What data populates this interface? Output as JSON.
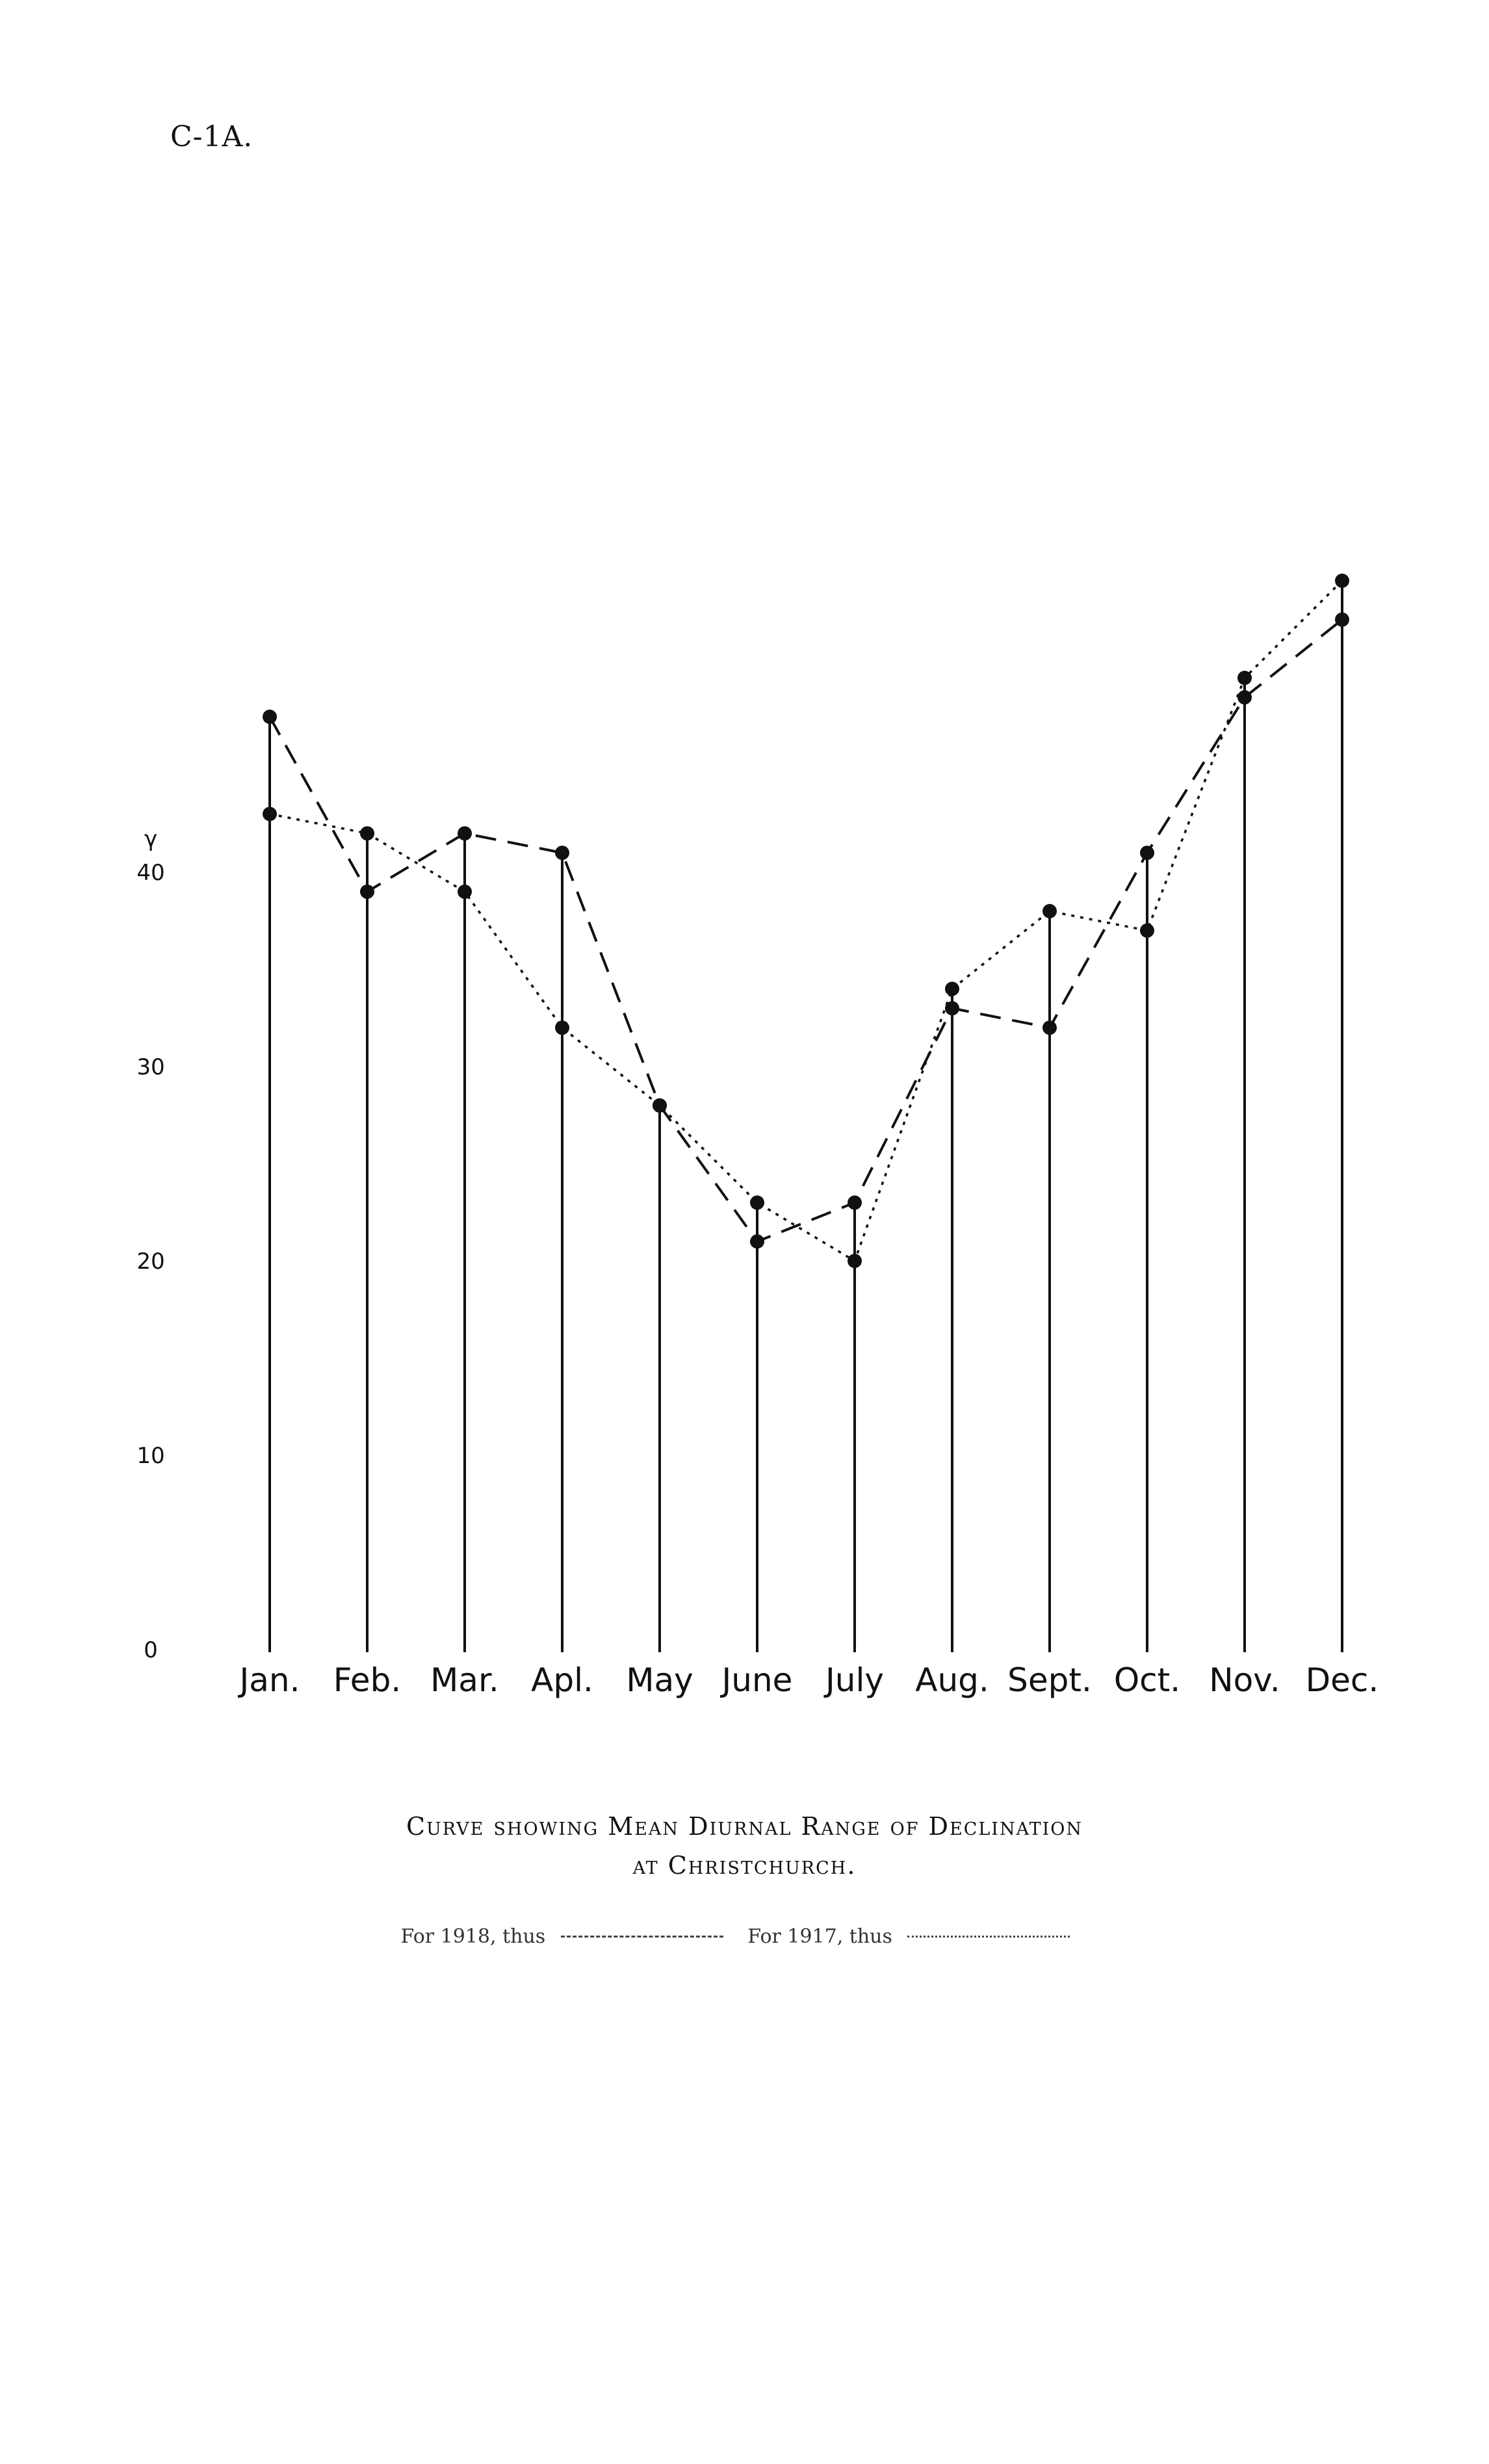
{
  "page_label": "C-1A.",
  "caption": {
    "line1": "Curve showing Mean Diurnal Range of Declination",
    "line2": "at Christchurch."
  },
  "legend": {
    "item_1918": "For 1918, thus",
    "item_1917": "For 1917, thus"
  },
  "chart_data": {
    "type": "line",
    "title": "Curve showing Mean Diurnal Range of Declination at Christchurch.",
    "y_unit": "γ",
    "categories": [
      "Jan.",
      "Feb.",
      "Mar.",
      "Apl.",
      "May",
      "June",
      "July",
      "Aug.",
      "Sept.",
      "Oct.",
      "Nov.",
      "Dec."
    ],
    "yticks": [
      "0",
      "10",
      "20",
      "30",
      "40"
    ],
    "ylim": [
      0,
      55
    ],
    "grid": false,
    "drop_lines": true,
    "series": [
      {
        "name": "For 1918, thus",
        "style": "dashed",
        "values": [
          48,
          39,
          42,
          41,
          28,
          21,
          23,
          33,
          32,
          41,
          49,
          53
        ]
      },
      {
        "name": "For 1917, thus",
        "style": "dotted",
        "values": [
          43,
          42,
          39,
          32,
          28,
          23,
          20,
          34,
          38,
          37,
          50,
          55
        ]
      }
    ],
    "colors": {
      "ink": "#111111"
    }
  }
}
